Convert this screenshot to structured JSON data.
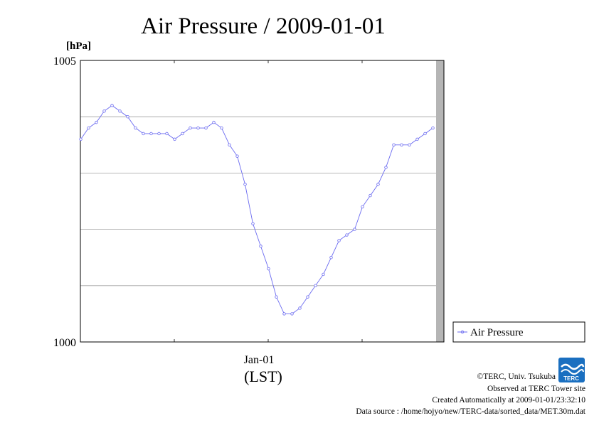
{
  "chart_data": {
    "type": "line",
    "title": "Air Pressure / 2009-01-01",
    "ylabel": "[hPa]",
    "xlabel": "(LST)",
    "ylim": [
      1000,
      1005
    ],
    "y_ticks": [
      "1005",
      "1000"
    ],
    "x_tick_label": "Jan-01",
    "grid": true,
    "legend_placement": "right",
    "series": [
      {
        "name": "Air Pressure",
        "color": "#6a6af0",
        "values": [
          1003.6,
          1003.8,
          1003.9,
          1004.1,
          1004.2,
          1004.1,
          1004.0,
          1003.8,
          1003.7,
          1003.7,
          1003.7,
          1003.7,
          1003.6,
          1003.7,
          1003.8,
          1003.8,
          1003.8,
          1003.9,
          1003.8,
          1003.5,
          1003.3,
          1002.8,
          1002.1,
          1001.7,
          1001.3,
          1000.8,
          1000.5,
          1000.5,
          1000.6,
          1000.8,
          1001.0,
          1001.2,
          1001.5,
          1001.8,
          1001.9,
          1002.0,
          1002.4,
          1002.6,
          1002.8,
          1003.1,
          1003.5,
          1003.5,
          1003.5,
          1003.6,
          1003.7,
          1003.8
        ]
      }
    ]
  },
  "credits": {
    "copyright": "©TERC, Univ. Tsukuba",
    "observed": "Observed at TERC Tower site",
    "created": "Created Automatically at 2009-01-01/23:32:10",
    "source": "Data source : /home/hojyo/new/TERC-data/sorted_data/MET.30m.dat"
  },
  "logo": {
    "text": "TERC",
    "color": "#1a6fc0"
  }
}
